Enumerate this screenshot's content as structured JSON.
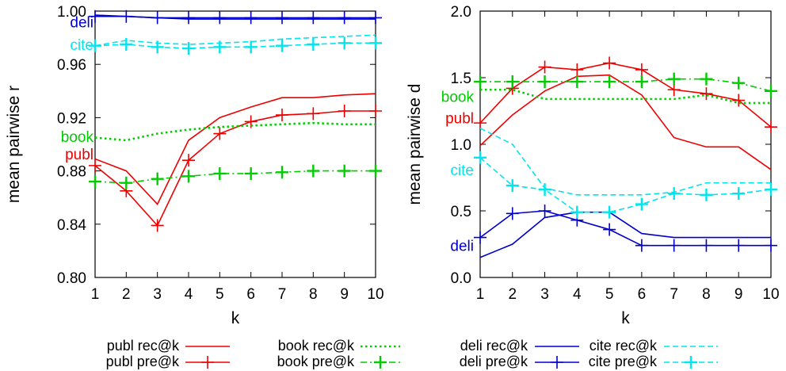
{
  "chart_data": [
    {
      "type": "line",
      "title": "",
      "xlabel": "k",
      "ylabel": "mean pairwise r",
      "xlim": [
        1,
        10
      ],
      "ylim": [
        0.8,
        1.0
      ],
      "x": [
        1,
        2,
        3,
        4,
        5,
        6,
        7,
        8,
        9,
        10
      ],
      "yticks": [
        "0.80",
        "0.84",
        "0.88",
        "0.92",
        "0.96",
        "1.00"
      ],
      "xticks": [
        "1",
        "2",
        "3",
        "4",
        "5",
        "6",
        "7",
        "8",
        "9",
        "10"
      ],
      "grid": false,
      "labels": [
        {
          "text": "deli",
          "color": "#0000cc",
          "y": 0.992
        },
        {
          "text": "cite",
          "color": "#00e5ee",
          "y": 0.975
        },
        {
          "text": "book",
          "color": "#00cc00",
          "y": 0.906
        },
        {
          "text": "publ",
          "color": "#ee0000",
          "y": 0.893
        }
      ],
      "series": [
        {
          "name": "publ rec@k",
          "color": "#ee0000",
          "dash": "solid",
          "marker": false,
          "values": [
            0.889,
            0.88,
            0.855,
            0.903,
            0.92,
            0.928,
            0.935,
            0.935,
            0.937,
            0.938
          ]
        },
        {
          "name": "publ pre@k",
          "color": "#ee0000",
          "dash": "solid",
          "marker": true,
          "values": [
            0.884,
            0.865,
            0.839,
            0.888,
            0.908,
            0.917,
            0.922,
            0.923,
            0.925,
            0.925
          ]
        },
        {
          "name": "book rec@k",
          "color": "#00cc00",
          "dash": "dotted",
          "marker": false,
          "values": [
            0.905,
            0.903,
            0.908,
            0.911,
            0.913,
            0.914,
            0.915,
            0.916,
            0.915,
            0.915
          ]
        },
        {
          "name": "book pre@k",
          "color": "#00cc00",
          "dash": "dashdot",
          "marker": true,
          "values": [
            0.872,
            0.871,
            0.874,
            0.876,
            0.878,
            0.878,
            0.879,
            0.88,
            0.88,
            0.88
          ]
        },
        {
          "name": "deli rec@k",
          "color": "#0000cc",
          "dash": "solid",
          "marker": false,
          "values": [
            0.997,
            0.996,
            0.995,
            0.994,
            0.994,
            0.994,
            0.994,
            0.994,
            0.994,
            0.994
          ]
        },
        {
          "name": "deli pre@k",
          "color": "#0000cc",
          "dash": "solid",
          "marker": true,
          "values": [
            0.996,
            0.996,
            0.995,
            0.995,
            0.995,
            0.995,
            0.995,
            0.995,
            0.995,
            0.995
          ]
        },
        {
          "name": "cite rec@k",
          "color": "#00e5ee",
          "dash": "dashed",
          "marker": false,
          "values": [
            0.974,
            0.978,
            0.976,
            0.975,
            0.976,
            0.977,
            0.979,
            0.98,
            0.981,
            0.982
          ]
        },
        {
          "name": "cite pre@k",
          "color": "#00e5ee",
          "dash": "dashed",
          "marker": true,
          "values": [
            0.974,
            0.975,
            0.973,
            0.972,
            0.973,
            0.973,
            0.974,
            0.975,
            0.976,
            0.976
          ]
        }
      ]
    },
    {
      "type": "line",
      "title": "",
      "xlabel": "k",
      "ylabel": "mean pairwise d",
      "xlim": [
        1,
        10
      ],
      "ylim": [
        0.0,
        2.0
      ],
      "x": [
        1,
        2,
        3,
        4,
        5,
        6,
        7,
        8,
        9,
        10
      ],
      "yticks": [
        "0.0",
        "0.5",
        "1.0",
        "1.5",
        "2.0"
      ],
      "xticks": [
        "1",
        "2",
        "3",
        "4",
        "5",
        "6",
        "7",
        "8",
        "9",
        "10"
      ],
      "grid": false,
      "labels": [
        {
          "text": "book",
          "color": "#00cc00",
          "y": 1.36
        },
        {
          "text": "publ",
          "color": "#ee0000",
          "y": 1.2
        },
        {
          "text": "cite",
          "color": "#00e5ee",
          "y": 0.81
        },
        {
          "text": "deli",
          "color": "#0000cc",
          "y": 0.24
        }
      ],
      "series": [
        {
          "name": "publ rec@k",
          "color": "#ee0000",
          "dash": "solid",
          "marker": false,
          "values": [
            0.99,
            1.22,
            1.4,
            1.51,
            1.52,
            1.37,
            1.05,
            0.98,
            0.98,
            0.81
          ]
        },
        {
          "name": "publ pre@k",
          "color": "#ee0000",
          "dash": "solid",
          "marker": true,
          "values": [
            1.16,
            1.42,
            1.58,
            1.56,
            1.61,
            1.56,
            1.41,
            1.38,
            1.33,
            1.13
          ]
        },
        {
          "name": "book rec@k",
          "color": "#00cc00",
          "dash": "dotted",
          "marker": false,
          "values": [
            1.41,
            1.41,
            1.34,
            1.34,
            1.34,
            1.34,
            1.34,
            1.37,
            1.31,
            1.31
          ]
        },
        {
          "name": "book pre@k",
          "color": "#00cc00",
          "dash": "dashdot",
          "marker": true,
          "values": [
            1.47,
            1.47,
            1.47,
            1.47,
            1.47,
            1.47,
            1.49,
            1.49,
            1.46,
            1.4
          ]
        },
        {
          "name": "deli rec@k",
          "color": "#0000cc",
          "dash": "solid",
          "marker": false,
          "values": [
            0.15,
            0.25,
            0.45,
            0.49,
            0.49,
            0.33,
            0.3,
            0.3,
            0.3,
            0.3
          ]
        },
        {
          "name": "deli pre@k",
          "color": "#0000cc",
          "dash": "solid",
          "marker": true,
          "values": [
            0.3,
            0.48,
            0.5,
            0.43,
            0.36,
            0.24,
            0.24,
            0.24,
            0.24,
            0.24
          ]
        },
        {
          "name": "cite rec@k",
          "color": "#00e5ee",
          "dash": "dashed",
          "marker": false,
          "values": [
            1.12,
            1.0,
            0.67,
            0.62,
            0.62,
            0.62,
            0.64,
            0.71,
            0.71,
            0.71
          ]
        },
        {
          "name": "cite pre@k",
          "color": "#00e5ee",
          "dash": "dashed",
          "marker": true,
          "values": [
            0.9,
            0.69,
            0.66,
            0.49,
            0.49,
            0.55,
            0.63,
            0.62,
            0.63,
            0.66
          ]
        }
      ]
    }
  ],
  "legend": {
    "placement": "bottom",
    "entries": [
      {
        "label": "publ rec@k",
        "series": 0
      },
      {
        "label": "publ pre@k",
        "series": 1
      },
      {
        "label": "book rec@k",
        "series": 2
      },
      {
        "label": "book pre@k",
        "series": 3
      },
      {
        "label": "deli rec@k",
        "series": 4
      },
      {
        "label": "deli pre@k",
        "series": 5
      },
      {
        "label": "cite rec@k",
        "series": 6
      },
      {
        "label": "cite pre@k",
        "series": 7
      }
    ]
  }
}
